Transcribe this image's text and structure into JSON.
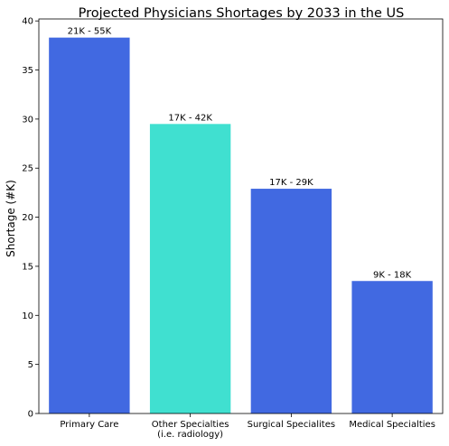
{
  "chart_data": {
    "type": "bar",
    "title": "Projected Physicians Shortages by 2033 in the US",
    "xlabel": "",
    "ylabel": "Shortage (#K)",
    "ylim": [
      0,
      40.2
    ],
    "yticks": [
      0,
      5,
      10,
      15,
      20,
      25,
      30,
      35,
      40
    ],
    "grid": false,
    "categories": [
      [
        "Primary Care"
      ],
      [
        "Other Specialties",
        "(i.e. radiology)"
      ],
      [
        "Surgical Specialites"
      ],
      [
        "Medical Specialties"
      ]
    ],
    "values": [
      38.3,
      29.5,
      22.9,
      13.5
    ],
    "data_labels": [
      "21K - 55K",
      "17K - 42K",
      "17K - 29K",
      "9K - 18K"
    ],
    "colors": [
      "#4169e1",
      "#40e0d0",
      "#4169e1",
      "#4169e1"
    ]
  }
}
